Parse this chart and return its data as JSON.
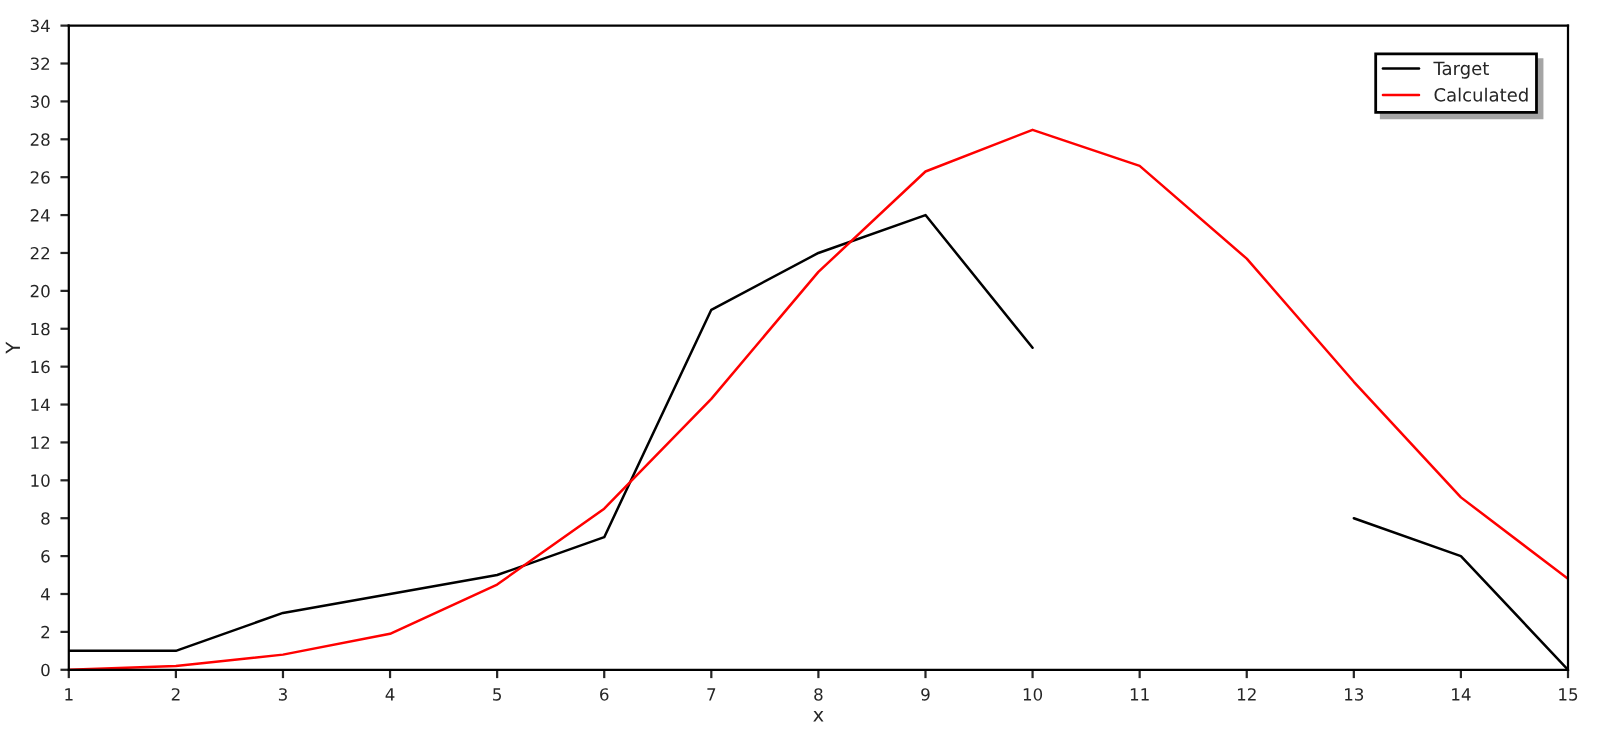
{
  "chart_data": {
    "type": "line",
    "xlabel": "x",
    "ylabel": "Y",
    "x": [
      1,
      2,
      3,
      4,
      5,
      6,
      7,
      8,
      9,
      10,
      11,
      12,
      13,
      14,
      15
    ],
    "series": [
      {
        "name": "Target",
        "color": "#000000",
        "values": [
          1,
          1,
          3,
          4,
          5,
          7,
          19,
          22,
          24,
          17,
          null,
          null,
          8,
          6,
          0
        ]
      },
      {
        "name": "Calculated",
        "color": "#ff0000",
        "values": [
          0,
          0.2,
          0.8,
          1.9,
          4.5,
          8.5,
          14.3,
          21,
          26.3,
          28.5,
          26.6,
          21.7,
          15.2,
          9.1,
          4.8
        ]
      }
    ],
    "xlim": [
      1,
      15
    ],
    "ylim": [
      0,
      34
    ],
    "xticks": [
      1,
      2,
      3,
      4,
      5,
      6,
      7,
      8,
      9,
      10,
      11,
      12,
      13,
      14,
      15
    ],
    "yticks": [
      0,
      2,
      4,
      6,
      8,
      10,
      12,
      14,
      16,
      18,
      20,
      22,
      24,
      26,
      28,
      30,
      32,
      34
    ],
    "grid": false,
    "legend": "top right",
    "marker": "none",
    "line_style": "solid"
  }
}
